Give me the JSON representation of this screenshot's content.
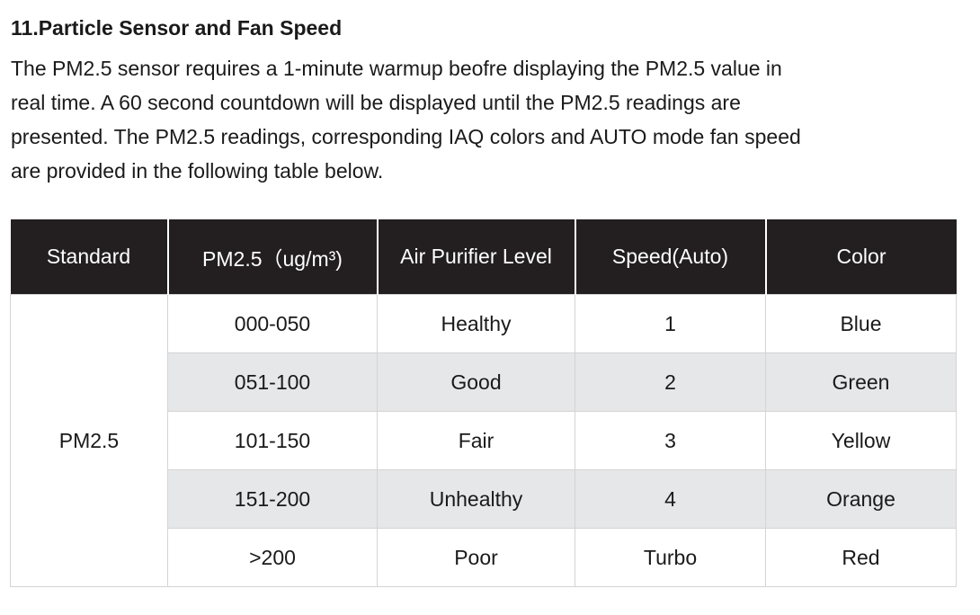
{
  "section": {
    "heading": "11.Particle Sensor and Fan Speed",
    "paragraph_lines": [
      "The PM2.5 sensor requires a 1-minute warmup beofre displaying the PM2.5 value in",
      "real time. A 60 second countdown will be displayed until the PM2.5 readings are",
      "presented. The PM2.5 readings, corresponding IAQ colors and AUTO mode fan speed",
      "are provided in the following table below."
    ]
  },
  "table": {
    "headers": [
      "Standard",
      "PM2.5（ug/m³)",
      "Air Purifier Level",
      "Speed(Auto)",
      "Color"
    ],
    "standard": "PM2.5",
    "rows": [
      {
        "range": "000-050",
        "level": "Healthy",
        "speed": "1",
        "color": "Blue"
      },
      {
        "range": "051-100",
        "level": "Good",
        "speed": "2",
        "color": "Green"
      },
      {
        "range": "101-150",
        "level": "Fair",
        "speed": "3",
        "color": "Yellow"
      },
      {
        "range": "151-200",
        "level": "Unhealthy",
        "speed": "4",
        "color": "Orange"
      },
      {
        "range": ">200",
        "level": "Poor",
        "speed": "Turbo",
        "color": "Red"
      }
    ]
  },
  "colors": {
    "header_bg": "#231f20",
    "header_text": "#ffffff",
    "shaded_row_bg": "#e6e7e8",
    "border": "#d4d4d4",
    "text": "#1a1a1a"
  }
}
